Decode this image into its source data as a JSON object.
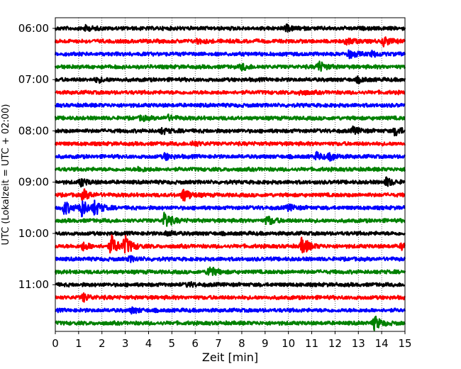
{
  "chart_data": {
    "type": "line",
    "title": "",
    "xlabel": "Zeit  [min]",
    "ylabel": "UTC (Lokalzeit = UTC + 02:00)",
    "xlim": [
      0,
      15
    ],
    "x_ticks": [
      0,
      1,
      2,
      3,
      4,
      5,
      6,
      7,
      8,
      9,
      10,
      11,
      12,
      13,
      14,
      15
    ],
    "y_tick_labels": [
      "06:00",
      "07:00",
      "08:00",
      "09:00",
      "10:00",
      "11:00"
    ],
    "grid": "vertical dotted lines at each minute",
    "trace_interval_min": 15,
    "first_trace_time": "06:00",
    "trace_colors": [
      "#000000",
      "#ff0000",
      "#0000ff",
      "#008000"
    ],
    "traces": [
      {
        "time": "06:00",
        "color": "black",
        "events": [
          {
            "t": 1.3,
            "amp": 0.3
          },
          {
            "t": 9.9,
            "amp": 0.35
          }
        ]
      },
      {
        "time": "06:15",
        "color": "red",
        "events": [
          {
            "t": 6.1,
            "amp": 0.25
          },
          {
            "t": 12.5,
            "amp": 0.45
          },
          {
            "t": 14.1,
            "amp": 0.6
          }
        ]
      },
      {
        "time": "06:30",
        "color": "blue",
        "events": [
          {
            "t": 12.6,
            "amp": 0.55
          },
          {
            "t": 13.6,
            "amp": 0.3
          }
        ]
      },
      {
        "time": "06:45",
        "color": "green",
        "events": [
          {
            "t": 8.0,
            "amp": 0.4
          },
          {
            "t": 11.3,
            "amp": 0.7
          }
        ]
      },
      {
        "time": "07:00",
        "color": "black",
        "events": [
          {
            "t": 1.8,
            "amp": 0.3
          },
          {
            "t": 13.0,
            "amp": 0.3
          }
        ]
      },
      {
        "time": "07:15",
        "color": "red",
        "events": [
          {
            "t": 10.5,
            "amp": 0.3
          }
        ]
      },
      {
        "time": "07:30",
        "color": "blue",
        "events": []
      },
      {
        "time": "07:45",
        "color": "green",
        "events": [
          {
            "t": 3.7,
            "amp": 0.3
          },
          {
            "t": 4.8,
            "amp": 0.35
          }
        ]
      },
      {
        "time": "08:00",
        "color": "black",
        "events": [
          {
            "t": 4.6,
            "amp": 0.35
          },
          {
            "t": 12.8,
            "amp": 0.45
          },
          {
            "t": 14.6,
            "amp": 0.6
          }
        ]
      },
      {
        "time": "08:15",
        "color": "red",
        "events": [
          {
            "t": 5.9,
            "amp": 0.3
          }
        ]
      },
      {
        "time": "08:30",
        "color": "blue",
        "events": [
          {
            "t": 4.7,
            "amp": 0.4
          },
          {
            "t": 11.2,
            "amp": 0.45
          },
          {
            "t": 11.8,
            "amp": 0.45
          }
        ]
      },
      {
        "time": "08:45",
        "color": "green",
        "events": [
          {
            "t": 3.6,
            "amp": 0.25
          }
        ]
      },
      {
        "time": "09:00",
        "color": "black",
        "events": [
          {
            "t": 1.1,
            "amp": 0.5
          },
          {
            "t": 14.2,
            "amp": 0.55
          }
        ]
      },
      {
        "time": "09:15",
        "color": "red",
        "events": [
          {
            "t": 1.2,
            "amp": 0.7
          },
          {
            "t": 5.5,
            "amp": 0.9
          }
        ]
      },
      {
        "time": "09:30",
        "color": "blue",
        "events": [
          {
            "t": 0.4,
            "amp": 0.9
          },
          {
            "t": 1.1,
            "amp": 1.3
          },
          {
            "t": 1.7,
            "amp": 0.9
          },
          {
            "t": 10.0,
            "amp": 0.4
          }
        ]
      },
      {
        "time": "09:45",
        "color": "green",
        "events": [
          {
            "t": 4.7,
            "amp": 1.1
          },
          {
            "t": 9.1,
            "amp": 0.6
          }
        ]
      },
      {
        "time": "10:00",
        "color": "black",
        "events": [
          {
            "t": 4.8,
            "amp": 0.3
          }
        ]
      },
      {
        "time": "10:15",
        "color": "red",
        "events": [
          {
            "t": 1.2,
            "amp": 0.5
          },
          {
            "t": 2.4,
            "amp": 1.4
          },
          {
            "t": 3.0,
            "amp": 1.2
          },
          {
            "t": 10.6,
            "amp": 1.2
          },
          {
            "t": 14.9,
            "amp": 0.5
          }
        ]
      },
      {
        "time": "10:30",
        "color": "blue",
        "events": [
          {
            "t": 3.2,
            "amp": 0.3
          }
        ]
      },
      {
        "time": "10:45",
        "color": "green",
        "events": [
          {
            "t": 6.6,
            "amp": 0.8
          }
        ]
      },
      {
        "time": "11:00",
        "color": "black",
        "events": [
          {
            "t": 5.7,
            "amp": 0.25
          }
        ]
      },
      {
        "time": "11:15",
        "color": "red",
        "events": [
          {
            "t": 1.2,
            "amp": 0.5
          }
        ]
      },
      {
        "time": "11:30",
        "color": "blue",
        "events": [
          {
            "t": 3.3,
            "amp": 0.35
          }
        ]
      },
      {
        "time": "11:45",
        "color": "green",
        "events": [
          {
            "t": 13.7,
            "amp": 0.9
          }
        ]
      }
    ]
  }
}
